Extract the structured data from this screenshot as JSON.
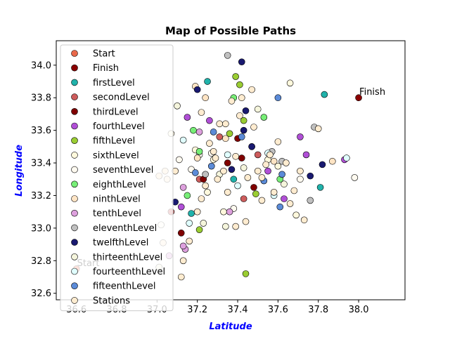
{
  "chart_data": {
    "type": "scatter",
    "title": "Map of Possible Paths",
    "xlabel": "Latitude",
    "ylabel": "Longitude",
    "xlim": [
      36.5,
      38.23
    ],
    "ylim": [
      32.56,
      34.15
    ],
    "xticks": [
      "36.6",
      "36.8",
      "37.0",
      "37.2",
      "37.4",
      "37.6",
      "37.8",
      "38.0"
    ],
    "yticks": [
      "32.6",
      "32.8",
      "33.0",
      "33.2",
      "33.4",
      "33.6",
      "33.8",
      "34.0"
    ],
    "grid": false,
    "legend_position": "upper-left",
    "annotations": [
      {
        "text": "Start",
        "x": 36.6,
        "y": 32.75
      },
      {
        "text": "Finish",
        "x": 38.0,
        "y": 33.8
      }
    ],
    "series": [
      {
        "name": "Start",
        "color": "#e8684a",
        "points": [
          [
            36.6,
            32.75
          ]
        ]
      },
      {
        "name": "Finish",
        "color": "#8b0000",
        "points": [
          [
            38.0,
            33.8
          ]
        ]
      },
      {
        "name": "firstLevel",
        "color": "#20b2aa",
        "points": [
          [
            37.25,
            33.9
          ],
          [
            37.83,
            33.82
          ],
          [
            37.17,
            33.09
          ],
          [
            37.81,
            33.25
          ],
          [
            37.38,
            33.3
          ]
        ]
      },
      {
        "name": "secondLevel",
        "color": "#cd5c5c",
        "points": [
          [
            37.31,
            33.56
          ],
          [
            37.43,
            33.18
          ],
          [
            37.07,
            33.1
          ],
          [
            37.21,
            33.3
          ],
          [
            37.5,
            33.45
          ]
        ]
      },
      {
        "name": "thirdLevel",
        "color": "#800000",
        "points": [
          [
            37.35,
            33.4
          ],
          [
            37.23,
            33.3
          ],
          [
            37.42,
            33.43
          ],
          [
            37.48,
            33.25
          ],
          [
            37.12,
            32.97
          ],
          [
            37.4,
            33.55
          ]
        ]
      },
      {
        "name": "fourthLevel",
        "color": "#b04fd6",
        "points": [
          [
            37.71,
            33.56
          ],
          [
            37.93,
            33.42
          ],
          [
            37.15,
            33.68
          ],
          [
            37.74,
            33.45
          ],
          [
            37.26,
            33.66
          ],
          [
            37.12,
            33.13
          ],
          [
            37.55,
            33.35
          ],
          [
            37.63,
            33.18
          ]
        ]
      },
      {
        "name": "fifthLevel",
        "color": "#9acd32",
        "points": [
          [
            37.39,
            33.93
          ],
          [
            37.41,
            33.88
          ],
          [
            37.44,
            32.72
          ],
          [
            37.21,
            32.99
          ],
          [
            37.36,
            33.58
          ],
          [
            37.49,
            33.21
          ],
          [
            37.43,
            33.66
          ],
          [
            37.47,
            33.5
          ]
        ]
      },
      {
        "name": "sixthLevel",
        "color": "#fff8dc",
        "points": [
          [
            37.19,
            33.48
          ],
          [
            37.28,
            33.42
          ],
          [
            37.07,
            33.58
          ],
          [
            37.55,
            33.42
          ],
          [
            37.33,
            33.1
          ],
          [
            37.6,
            33.38
          ],
          [
            37.25,
            33.22
          ],
          [
            37.66,
            33.89
          ],
          [
            37.69,
            33.08
          ]
        ]
      },
      {
        "name": "seventhLevel",
        "color": "#fffaf0",
        "points": [
          [
            37.02,
            33.02
          ],
          [
            37.17,
            33.36
          ],
          [
            37.27,
            33.46
          ],
          [
            37.11,
            33.42
          ],
          [
            37.38,
            33.12
          ],
          [
            37.21,
            33.45
          ],
          [
            37.71,
            33.3
          ],
          [
            37.98,
            33.31
          ]
        ]
      },
      {
        "name": "eighthLevel",
        "color": "#77ee77",
        "points": [
          [
            37.18,
            33.6
          ],
          [
            37.21,
            33.47
          ],
          [
            37.53,
            33.68
          ],
          [
            37.61,
            33.3
          ],
          [
            37.38,
            33.8
          ],
          [
            37.15,
            33.2
          ]
        ]
      },
      {
        "name": "ninthLevel",
        "color": "#ffe4c4",
        "points": [
          [
            37.19,
            33.87
          ],
          [
            37.24,
            33.8
          ],
          [
            37.2,
            33.43
          ],
          [
            37.04,
            33.35
          ],
          [
            37.58,
            33.41
          ],
          [
            37.87,
            33.41
          ],
          [
            37.01,
            33.32
          ],
          [
            37.34,
            33.55
          ]
        ]
      },
      {
        "name": "tenthLevel",
        "color": "#dda0dd",
        "points": [
          [
            37.14,
            32.87
          ],
          [
            37.21,
            33.59
          ],
          [
            37.13,
            33.25
          ],
          [
            37.36,
            33.1
          ],
          [
            37.13,
            32.89
          ],
          [
            37.06,
            32.83
          ]
        ]
      },
      {
        "name": "eleventhLevel",
        "color": "#c0c0c0",
        "points": [
          [
            37.35,
            34.06
          ],
          [
            37.78,
            33.62
          ],
          [
            37.76,
            33.17
          ],
          [
            37.62,
            33.41
          ],
          [
            37.57,
            33.47
          ],
          [
            37.24,
            33.33
          ]
        ]
      },
      {
        "name": "twelfthLevel",
        "color": "#191970",
        "points": [
          [
            37.42,
            34.02
          ],
          [
            37.2,
            33.85
          ],
          [
            37.82,
            33.39
          ],
          [
            37.76,
            33.32
          ],
          [
            37.44,
            33.72
          ],
          [
            37.09,
            33.16
          ],
          [
            37.47,
            33.5
          ],
          [
            37.43,
            33.6
          ],
          [
            37.37,
            33.36
          ]
        ]
      },
      {
        "name": "thirteenthLevel",
        "color": "#f5f5dc",
        "points": [
          [
            37.1,
            33.75
          ],
          [
            37.23,
            33.03
          ],
          [
            37.01,
            32.76
          ],
          [
            37.31,
            33.33
          ],
          [
            37.63,
            33.27
          ],
          [
            37.34,
            33.01
          ],
          [
            37.5,
            33.73
          ],
          [
            37.43,
            33.37
          ]
        ]
      },
      {
        "name": "fourteenthLevel",
        "color": "#e0ffff",
        "points": [
          [
            37.13,
            33.54
          ],
          [
            37.94,
            33.43
          ],
          [
            37.58,
            33.2
          ],
          [
            37.4,
            33.26
          ],
          [
            37.16,
            33.03
          ],
          [
            37.35,
            33.45
          ],
          [
            37.55,
            33.46
          ]
        ]
      },
      {
        "name": "fifteenthLevel",
        "color": "#5b8bd8",
        "points": [
          [
            37.6,
            33.8
          ],
          [
            37.28,
            33.59
          ],
          [
            37.42,
            33.56
          ],
          [
            37.19,
            33.34
          ],
          [
            37.53,
            33.29
          ],
          [
            37.62,
            33.33
          ],
          [
            37.61,
            33.13
          ],
          [
            37.27,
            33.38
          ]
        ]
      },
      {
        "name": "Stations",
        "color": "#ffecd0",
        "points": [
          [
            37.47,
            33.85
          ],
          [
            37.56,
            33.45
          ],
          [
            37.41,
            33.69
          ],
          [
            37.29,
            33.43
          ],
          [
            37.64,
            33.4
          ],
          [
            37.8,
            33.61
          ],
          [
            37.03,
            32.91
          ],
          [
            37.31,
            33.64
          ],
          [
            37.52,
            33.17
          ],
          [
            37.44,
            33.04
          ],
          [
            37.68,
            33.23
          ],
          [
            37.2,
            33.1
          ],
          [
            37.26,
            33.52
          ],
          [
            37.37,
            33.78
          ],
          [
            37.09,
            33.35
          ],
          [
            37.5,
            33.35
          ],
          [
            37.39,
            33.01
          ],
          [
            37.58,
            33.22
          ],
          [
            37.73,
            33.05
          ],
          [
            37.16,
            32.92
          ],
          [
            37.22,
            33.71
          ],
          [
            37.45,
            33.31
          ],
          [
            37.35,
            33.22
          ],
          [
            37.3,
            33.3
          ],
          [
            37.66,
            33.15
          ],
          [
            37.12,
            32.7
          ],
          [
            37.28,
            33.47
          ],
          [
            37.42,
            33.8
          ],
          [
            37.54,
            33.39
          ],
          [
            37.33,
            33.35
          ],
          [
            37.48,
            33.62
          ],
          [
            37.05,
            33.3
          ],
          [
            37.24,
            33.26
          ],
          [
            37.71,
            33.35
          ],
          [
            37.6,
            33.53
          ],
          [
            37.13,
            32.8
          ],
          [
            37.39,
            33.44
          ],
          [
            37.34,
            33.64
          ],
          [
            37.22,
            33.18
          ],
          [
            37.52,
            33.31
          ]
        ]
      }
    ]
  }
}
